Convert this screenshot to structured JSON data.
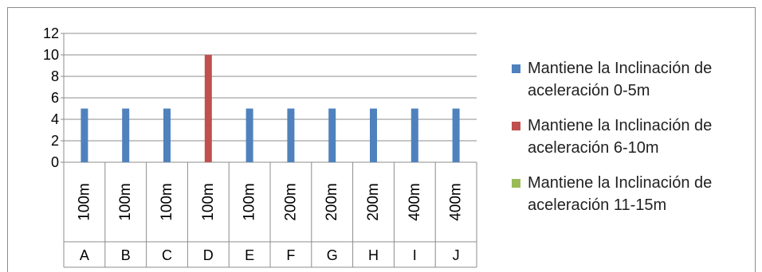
{
  "chart_data": {
    "type": "bar",
    "title": "",
    "xlabel": "",
    "ylabel": "",
    "ylim": [
      0,
      12
    ],
    "yticks": [
      0,
      2,
      4,
      6,
      8,
      10,
      12
    ],
    "grid": true,
    "legend_position": "right",
    "categories": [
      "A",
      "B",
      "C",
      "D",
      "E",
      "F",
      "G",
      "H",
      "I",
      "J"
    ],
    "distances": [
      "100m",
      "100m",
      "100m",
      "100m",
      "100m",
      "200m",
      "200m",
      "200m",
      "400m",
      "400m"
    ],
    "series": [
      {
        "name": "Mantiene la Inclinación de aceleración 0-5m",
        "color": "#4f81bd",
        "values": [
          5,
          5,
          5,
          null,
          5,
          5,
          5,
          5,
          5,
          5
        ]
      },
      {
        "name": "Mantiene la Inclinación de aceleración 6-10m",
        "color": "#c0504d",
        "values": [
          null,
          null,
          null,
          10,
          null,
          null,
          null,
          null,
          null,
          null
        ]
      },
      {
        "name": "Mantiene la Inclinación de aceleración 11-15m",
        "color": "#9bbb59",
        "values": [
          null,
          null,
          null,
          null,
          null,
          null,
          null,
          null,
          null,
          null
        ]
      }
    ]
  }
}
